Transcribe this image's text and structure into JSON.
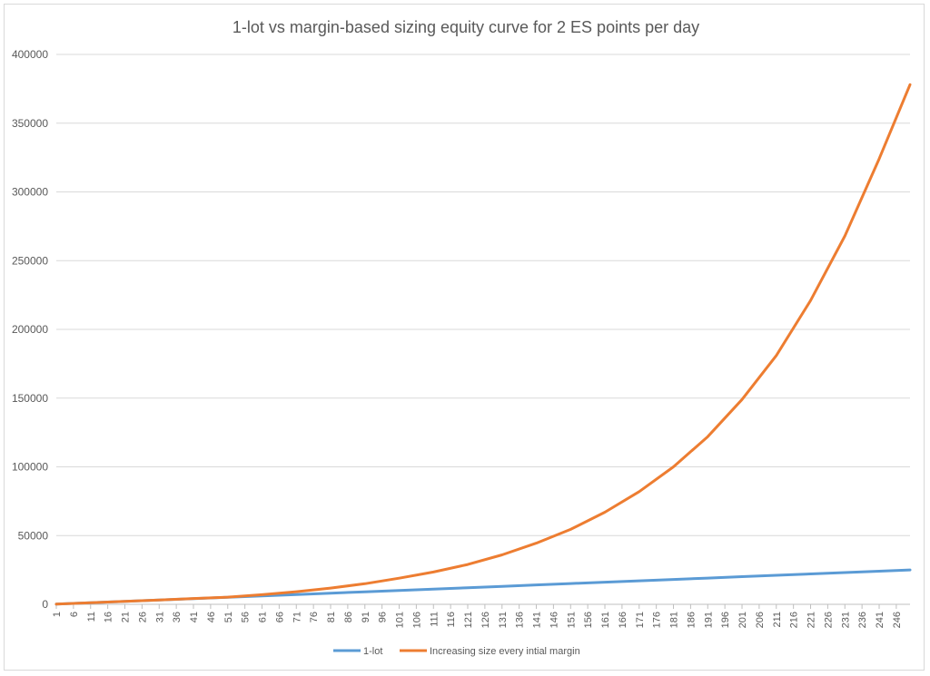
{
  "chart_data": {
    "type": "line",
    "title": "1-lot vs margin-based sizing equity curve for 2 ES points per day",
    "xlabel": "",
    "ylabel": "",
    "x_range": [
      1,
      250
    ],
    "x_tick_labels": [
      "1",
      "6",
      "11",
      "16",
      "21",
      "26",
      "31",
      "36",
      "41",
      "46",
      "51",
      "56",
      "61",
      "66",
      "71",
      "76",
      "81",
      "86",
      "91",
      "96",
      "101",
      "106",
      "111",
      "116",
      "121",
      "126",
      "131",
      "136",
      "141",
      "146",
      "151",
      "156",
      "161",
      "166",
      "171",
      "176",
      "181",
      "186",
      "191",
      "196",
      "201",
      "206",
      "211",
      "216",
      "221",
      "226",
      "231",
      "236",
      "241",
      "246"
    ],
    "ylim": [
      0,
      400000
    ],
    "y_ticks": [
      0,
      50000,
      100000,
      150000,
      200000,
      250000,
      300000,
      350000,
      400000
    ],
    "grid": true,
    "legend_position": "bottom",
    "series": [
      {
        "name": "1-lot",
        "color": "#5b9bd5",
        "x": [
          1,
          11,
          21,
          31,
          41,
          51,
          61,
          71,
          81,
          91,
          101,
          111,
          121,
          131,
          141,
          151,
          161,
          171,
          181,
          191,
          201,
          211,
          221,
          231,
          241,
          250
        ],
        "values": [
          100,
          1100,
          2100,
          3100,
          4100,
          5100,
          6100,
          7100,
          8100,
          9100,
          10100,
          11100,
          12100,
          13100,
          14100,
          15100,
          16100,
          17100,
          18100,
          19100,
          20100,
          21100,
          22100,
          23100,
          24100,
          25000
        ]
      },
      {
        "name": "Increasing size every intial margin",
        "color": "#ed7d31",
        "x": [
          1,
          11,
          21,
          31,
          41,
          51,
          61,
          71,
          81,
          91,
          101,
          111,
          121,
          131,
          141,
          151,
          161,
          171,
          181,
          191,
          201,
          211,
          221,
          231,
          241,
          250
        ],
        "values": [
          100,
          1100,
          2200,
          3200,
          4200,
          5200,
          7000,
          9200,
          11800,
          15000,
          19000,
          23500,
          29000,
          36000,
          44500,
          54500,
          67000,
          82000,
          100000,
          122000,
          149000,
          181000,
          221000,
          268000,
          324000,
          378000
        ]
      }
    ]
  }
}
